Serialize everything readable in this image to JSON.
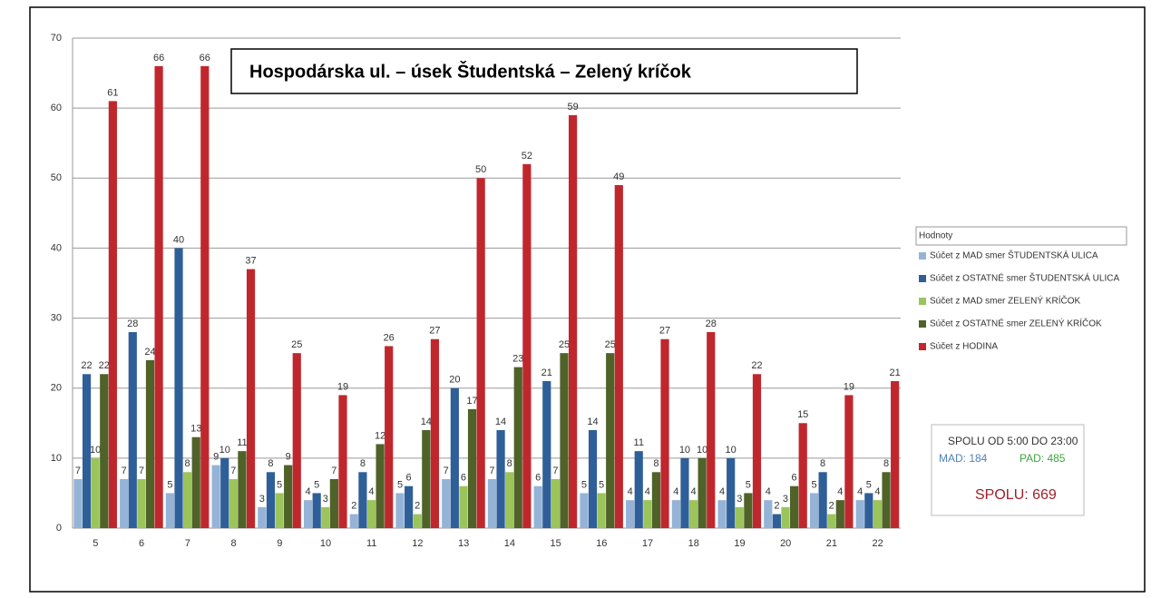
{
  "chart_data": {
    "type": "bar",
    "title": "Hospodárska ul. – úsek Študentská – Zelený kríčok",
    "categories": [
      "5",
      "6",
      "7",
      "8",
      "9",
      "10",
      "11",
      "12",
      "13",
      "14",
      "15",
      "16",
      "17",
      "18",
      "19",
      "20",
      "21",
      "22"
    ],
    "series": [
      {
        "name": "Súčet z MAD smer ŠTUDENTSKÁ ULICA",
        "color": "#95b3d7",
        "values": [
          7,
          7,
          5,
          9,
          3,
          4,
          2,
          5,
          7,
          7,
          6,
          5,
          4,
          4,
          4,
          4,
          5,
          4
        ]
      },
      {
        "name": "Súčet z OSTATNÉ smer ŠTUDENTSKÁ ULICA",
        "color": "#2f5f98",
        "values": [
          22,
          28,
          40,
          10,
          8,
          5,
          8,
          6,
          20,
          14,
          21,
          14,
          11,
          10,
          10,
          2,
          8,
          5
        ]
      },
      {
        "name": "Súčet z MAD smer ZELENÝ KRÍČOK",
        "color": "#9bc45a",
        "values": [
          10,
          7,
          8,
          7,
          5,
          3,
          4,
          2,
          6,
          8,
          7,
          5,
          4,
          4,
          3,
          3,
          2,
          4
        ]
      },
      {
        "name": "Súčet z OSTATNÉ smer ZELENÝ KRÍČOK",
        "color": "#4f6228",
        "values": [
          22,
          24,
          13,
          11,
          9,
          7,
          12,
          14,
          17,
          23,
          25,
          25,
          8,
          10,
          5,
          6,
          4,
          8
        ]
      },
      {
        "name": "Súčet z HODINA",
        "color": "#c0272d",
        "values": [
          61,
          66,
          66,
          37,
          25,
          19,
          26,
          27,
          50,
          52,
          59,
          49,
          27,
          28,
          22,
          15,
          19,
          21
        ]
      }
    ],
    "legend_title": "Hodnoty",
    "ylim": [
      0,
      70
    ],
    "yticks": [
      0,
      10,
      20,
      30,
      40,
      50,
      60,
      70
    ],
    "grid": true,
    "summary": {
      "heading": "SPOLU OD 5:00 DO 23:00",
      "mad": "MAD: 184",
      "pad": "PAD: 485",
      "total": "SPOLU: 669"
    }
  }
}
